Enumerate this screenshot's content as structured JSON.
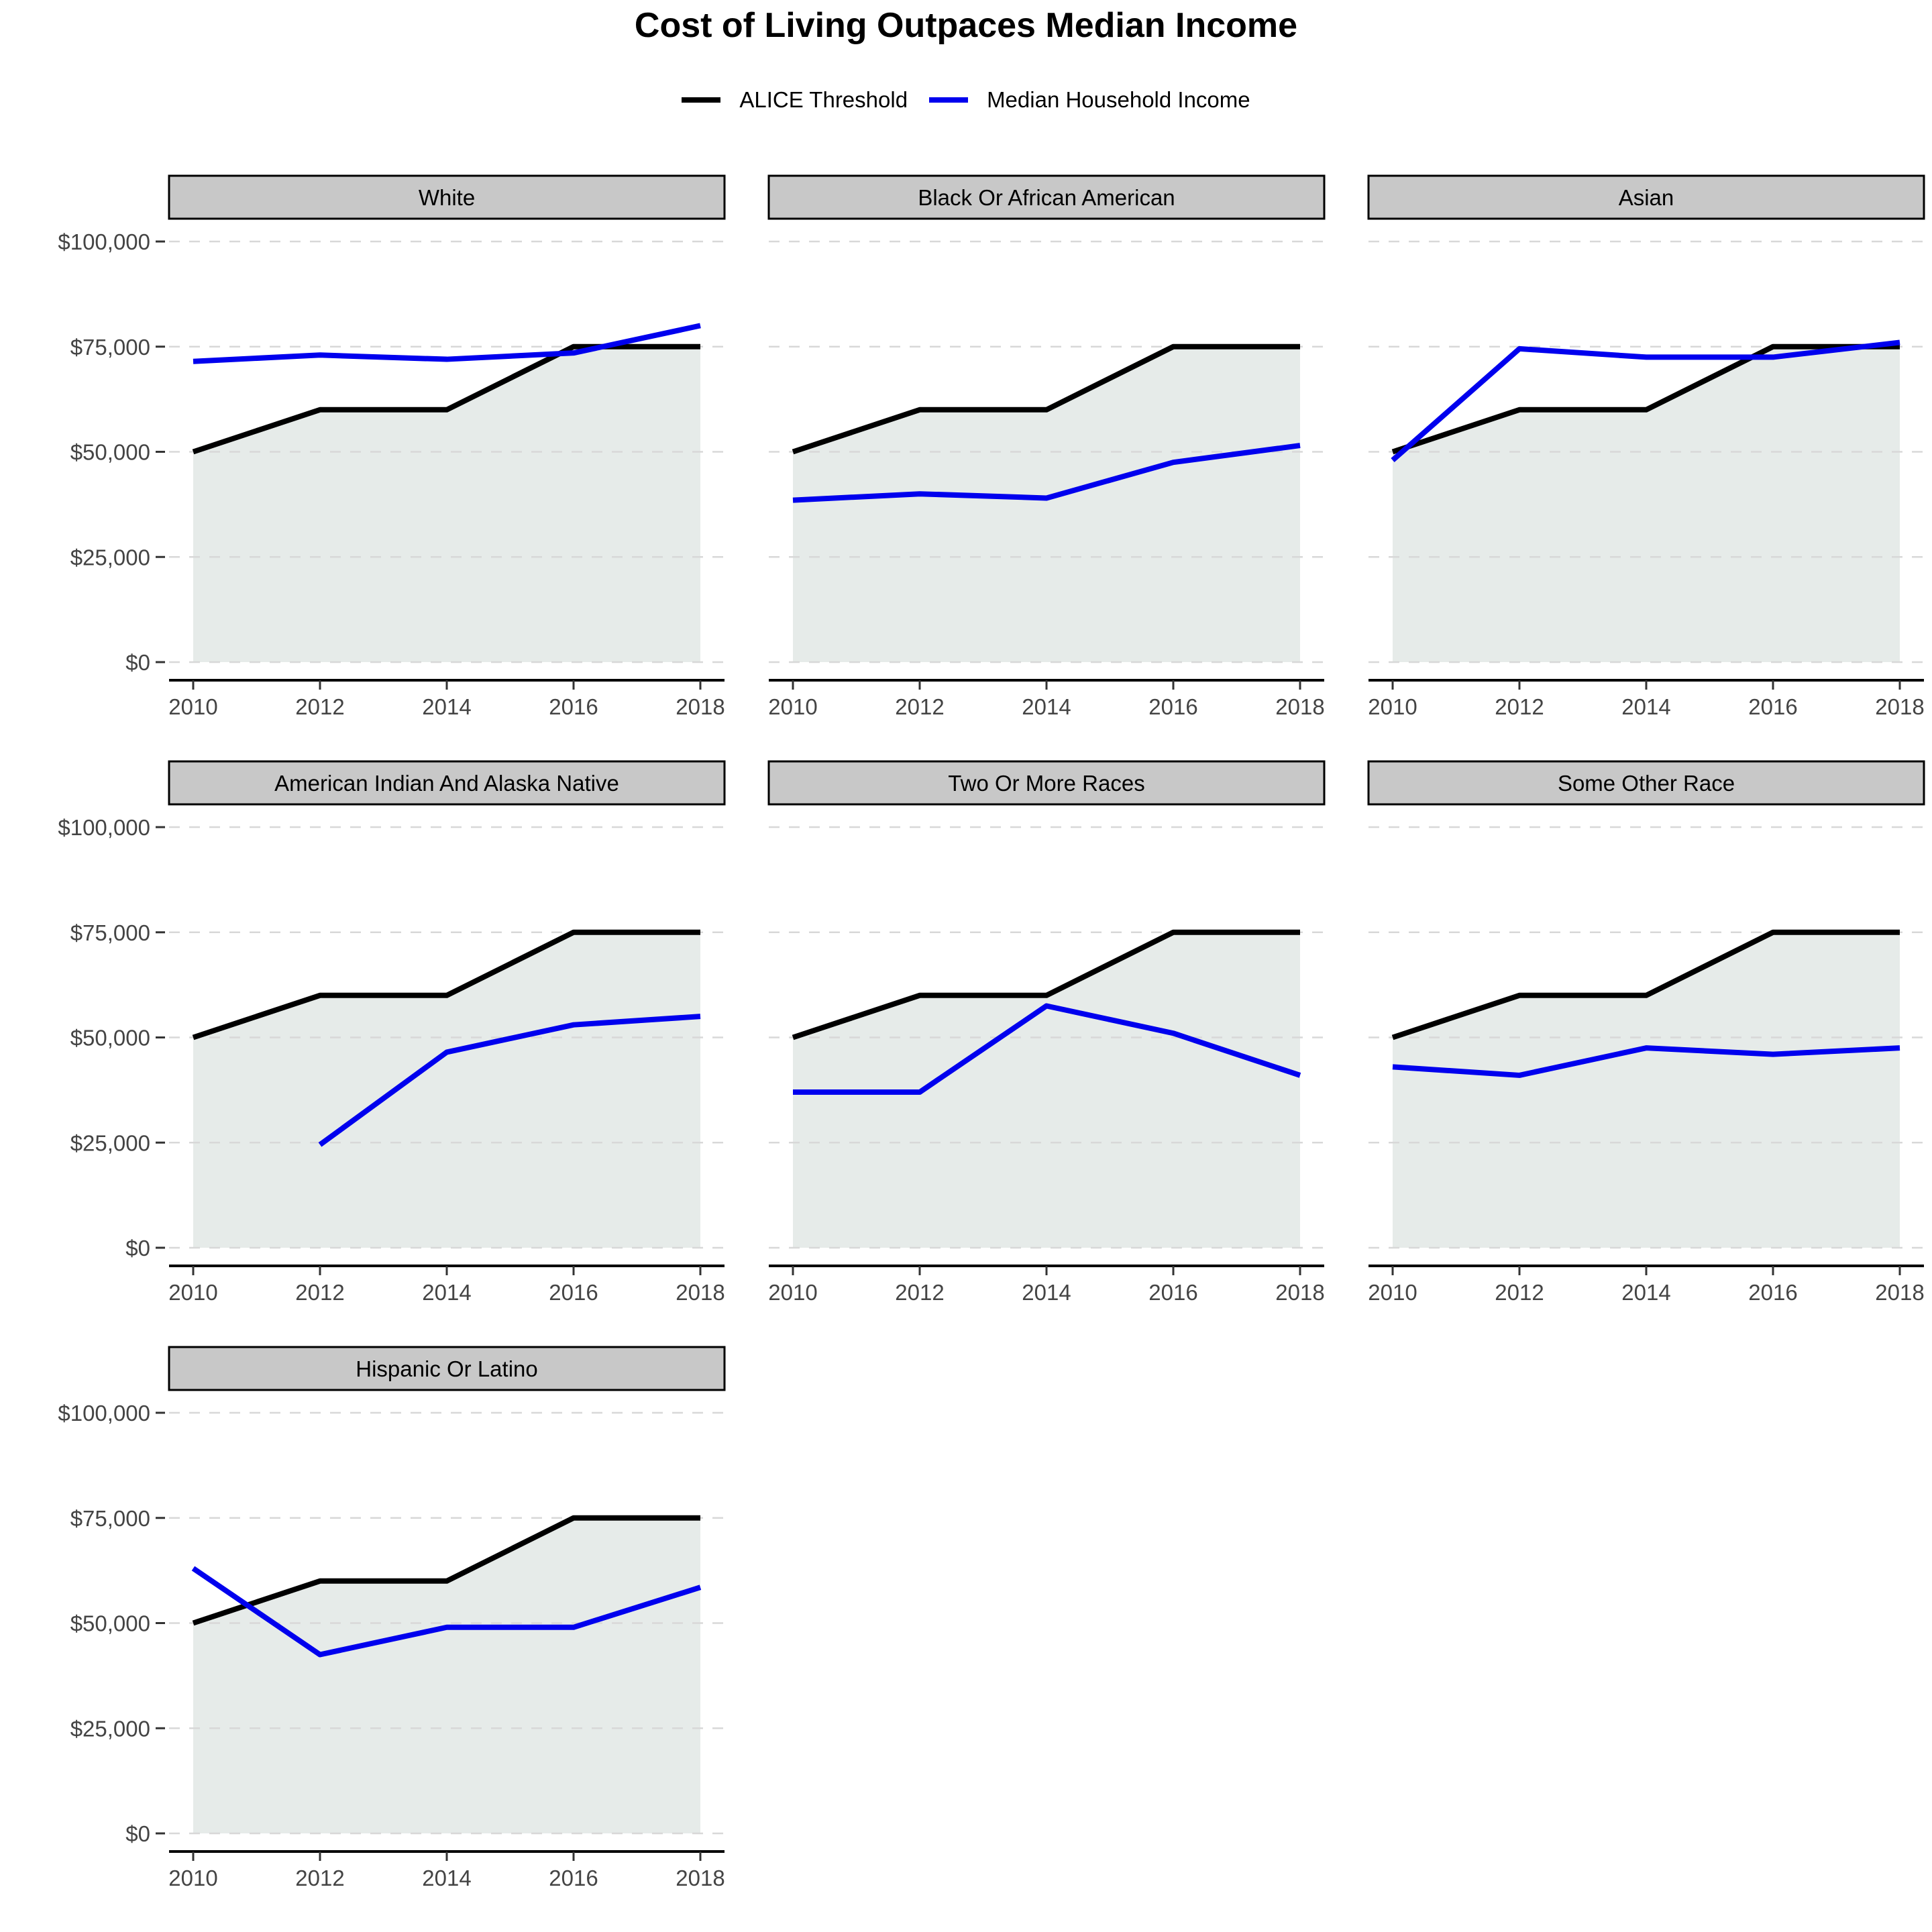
{
  "chart_data": {
    "type": "line",
    "title": "Cost of Living Outpaces Median Income",
    "xlabel": "",
    "ylabel": "",
    "x": [
      2010,
      2012,
      2014,
      2016,
      2018
    ],
    "x_ticks": [
      "2010",
      "2012",
      "2014",
      "2016",
      "2018"
    ],
    "y_ticks": [
      "$0",
      "$25,000",
      "$50,000",
      "$75,000",
      "$100,000"
    ],
    "y_tick_values": [
      0,
      25000,
      50000,
      75000,
      100000
    ],
    "ylim": [
      0,
      100000
    ],
    "grid": "horizontal dashed",
    "legend_position": "top",
    "legend": [
      {
        "name": "ALICE Threshold",
        "color": "#000000"
      },
      {
        "name": "Median Household Income",
        "color": "#0000ee"
      }
    ],
    "area_fill_color": "#e6ebe9",
    "strip_fill_color": "#c8c8c8",
    "panels": [
      {
        "name": "White",
        "alice": [
          50000,
          60000,
          60000,
          75000,
          75000
        ],
        "income": [
          71500,
          73000,
          72000,
          73500,
          80000
        ]
      },
      {
        "name": "Black Or African American",
        "alice": [
          50000,
          60000,
          60000,
          75000,
          75000
        ],
        "income": [
          38500,
          40000,
          39000,
          47500,
          51500
        ]
      },
      {
        "name": "Asian",
        "alice": [
          50000,
          60000,
          60000,
          75000,
          75000
        ],
        "income": [
          48000,
          74500,
          72500,
          72500,
          76000
        ]
      },
      {
        "name": "American Indian And Alaska Native",
        "alice": [
          50000,
          60000,
          60000,
          75000,
          75000
        ],
        "income": [
          null,
          24500,
          46500,
          53000,
          55000
        ]
      },
      {
        "name": "Two Or More Races",
        "alice": [
          50000,
          60000,
          60000,
          75000,
          75000
        ],
        "income": [
          37000,
          37000,
          57500,
          51000,
          41000
        ]
      },
      {
        "name": "Some Other Race",
        "alice": [
          50000,
          60000,
          60000,
          75000,
          75000
        ],
        "income": [
          43000,
          41000,
          47500,
          46000,
          47500
        ]
      },
      {
        "name": "Hispanic Or Latino",
        "alice": [
          50000,
          60000,
          60000,
          75000,
          75000
        ],
        "income": [
          63000,
          42500,
          49000,
          49000,
          58500
        ]
      }
    ]
  }
}
